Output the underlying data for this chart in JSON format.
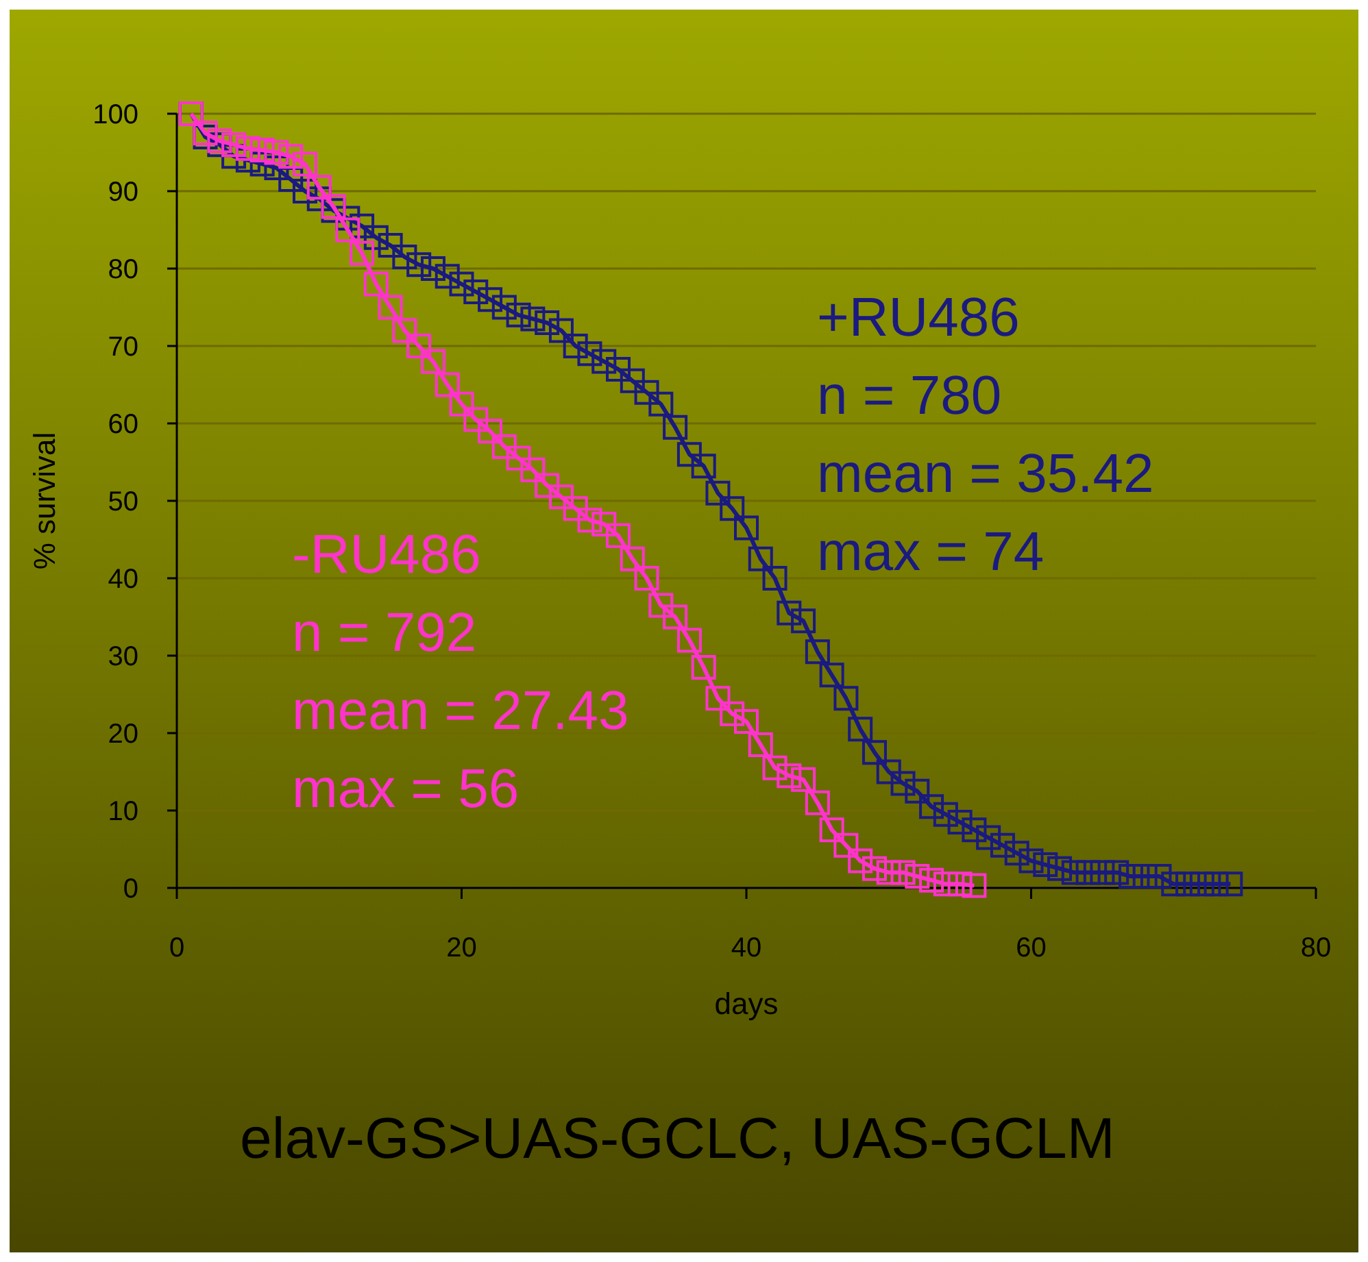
{
  "chart_data": {
    "type": "line",
    "title": "elav-GS>UAS-GCLC, UAS-GCLM",
    "xlabel": "days",
    "ylabel": "% survival",
    "xlim": [
      0,
      80
    ],
    "xticks": [
      0,
      20,
      40,
      60,
      80
    ],
    "ylim": [
      0,
      100
    ],
    "yticks": [
      0,
      10,
      20,
      30,
      40,
      50,
      60,
      70,
      80,
      90,
      100
    ],
    "grid": "y",
    "marker": "square",
    "line_style": "solid",
    "series": [
      {
        "name": "+RU486",
        "color": "#1a1a80",
        "x": [
          1,
          2,
          3,
          4,
          5,
          6,
          7,
          8,
          9,
          10,
          11,
          12,
          13,
          14,
          15,
          16,
          17,
          18,
          19,
          20,
          21,
          22,
          23,
          24,
          25,
          26,
          27,
          28,
          29,
          30,
          31,
          32,
          33,
          34,
          35,
          36,
          37,
          38,
          39,
          40,
          41,
          42,
          43,
          44,
          45,
          46,
          47,
          48,
          49,
          50,
          51,
          52,
          53,
          54,
          55,
          56,
          57,
          58,
          59,
          60,
          61,
          62,
          63,
          64,
          65,
          66,
          67,
          68,
          69,
          70,
          71,
          72,
          73,
          74
        ],
        "values": [
          100,
          97,
          96,
          94.5,
          94,
          93.5,
          93,
          91.5,
          90,
          89,
          87.5,
          86.5,
          85.5,
          84,
          83,
          81.5,
          80.5,
          80,
          79,
          78,
          77,
          76,
          75,
          74,
          73.5,
          73,
          72,
          70,
          69,
          68,
          67,
          65.5,
          64,
          62.5,
          59.5,
          56,
          54.5,
          51,
          49,
          46.5,
          42.5,
          40,
          35.5,
          34.5,
          30.5,
          27.5,
          24.5,
          20.5,
          17.5,
          15,
          13.5,
          12.5,
          10.5,
          9.5,
          8.5,
          7.5,
          6.5,
          5.5,
          4.5,
          3.5,
          3,
          2.5,
          2,
          2,
          2,
          2,
          1.5,
          1.5,
          1.5,
          0.5,
          0.5,
          0.5,
          0.5,
          0.5
        ]
      },
      {
        "name": "-RU486",
        "color": "#ff33cc",
        "x": [
          1,
          2,
          3,
          4,
          5,
          6,
          7,
          8,
          9,
          10,
          11,
          12,
          13,
          14,
          15,
          16,
          17,
          18,
          19,
          20,
          21,
          22,
          23,
          24,
          25,
          26,
          27,
          28,
          29,
          30,
          31,
          32,
          33,
          34,
          35,
          36,
          37,
          38,
          39,
          40,
          41,
          42,
          43,
          44,
          45,
          46,
          47,
          48,
          49,
          50,
          51,
          52,
          53,
          54,
          55,
          56
        ],
        "values": [
          100,
          97.5,
          96.5,
          96,
          95.5,
          95.3,
          95,
          94.5,
          93.5,
          90.5,
          88,
          85,
          82,
          78,
          75,
          72,
          70,
          68,
          65,
          62.5,
          60.5,
          59,
          57,
          55.5,
          54,
          52,
          50.5,
          49,
          47.5,
          47,
          45.5,
          42.5,
          40,
          36.5,
          35,
          32,
          28.5,
          24.5,
          22.5,
          21.5,
          18.5,
          15.5,
          14.5,
          14,
          11,
          7.5,
          5.5,
          3.5,
          2.5,
          2,
          2,
          1.5,
          1,
          0.5,
          0.5,
          0.3
        ]
      }
    ],
    "annotations": [
      "n = 780",
      "mean = 35.42",
      "max = 74",
      "n = 792",
      "mean = 27.43",
      "max = 56"
    ]
  }
}
